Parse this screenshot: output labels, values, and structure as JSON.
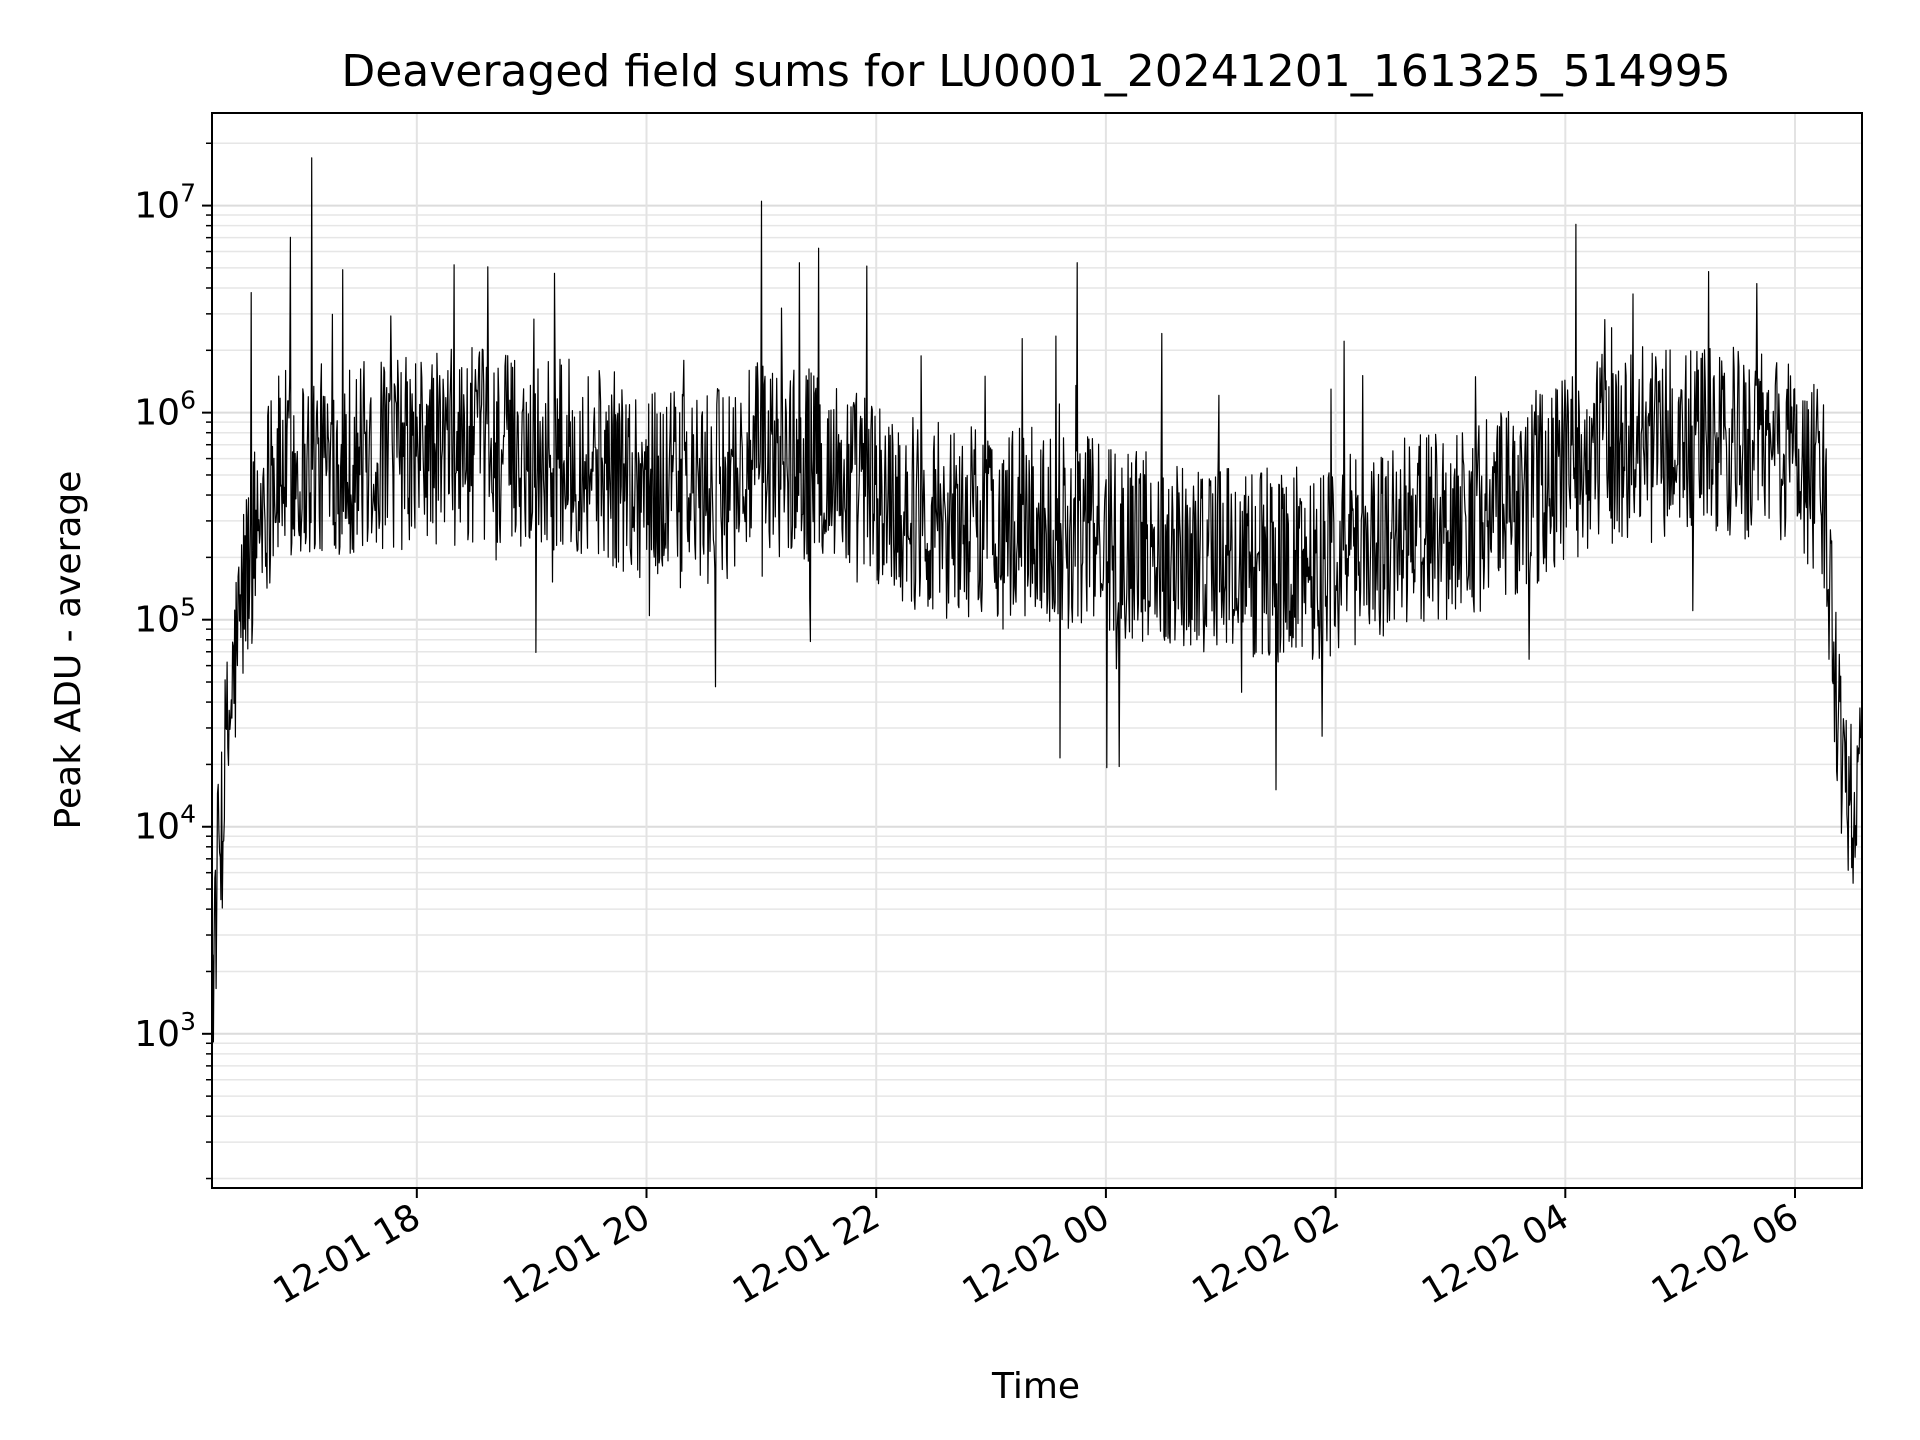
{
  "chart_data": {
    "type": "line",
    "title": "Deaveraged field sums for LU0001_20241201_161325_514995",
    "xlabel": "Time",
    "ylabel": "Peak ADU - average",
    "yscale": "log",
    "ylim": [
      180,
      28000000
    ],
    "xlim": [
      "2024-12-01 16:13",
      "2024-12-02 06:35"
    ],
    "grid": "major and minor, light gray",
    "line_color": "#000000",
    "x_ticks": [
      "12-01 18",
      "12-01 20",
      "12-01 22",
      "12-02 00",
      "12-02 02",
      "12-02 04",
      "12-02 06"
    ],
    "x_tick_values": [
      "2024-12-01 18:00",
      "2024-12-01 20:00",
      "2024-12-01 22:00",
      "2024-12-02 00:00",
      "2024-12-02 02:00",
      "2024-12-02 04:00",
      "2024-12-02 06:00"
    ],
    "y_ticks": [
      {
        "base": "10",
        "exp": "3",
        "value": 1000
      },
      {
        "base": "10",
        "exp": "4",
        "value": 10000
      },
      {
        "base": "10",
        "exp": "5",
        "value": 100000
      },
      {
        "base": "10",
        "exp": "6",
        "value": 1000000
      },
      {
        "base": "10",
        "exp": "7",
        "value": 10000000
      }
    ],
    "series": [
      {
        "x": [
          "2024-12-01 16:13",
          "2024-12-01 16:15",
          "2024-12-01 16:20",
          "2024-12-01 16:25",
          "2024-12-01 16:30",
          "2024-12-01 16:40",
          "2024-12-01 16:50",
          "2024-12-01 17:00",
          "2024-12-01 17:15",
          "2024-12-01 17:30",
          "2024-12-01 18:00",
          "2024-12-01 18:30",
          "2024-12-01 19:00",
          "2024-12-01 19:30",
          "2024-12-01 20:00",
          "2024-12-01 20:30",
          "2024-12-01 21:00",
          "2024-12-01 21:30",
          "2024-12-01 22:00",
          "2024-12-01 22:30",
          "2024-12-01 23:00",
          "2024-12-01 23:30",
          "2024-12-02 00:00",
          "2024-12-02 00:30",
          "2024-12-02 01:00",
          "2024-12-02 01:30",
          "2024-12-02 02:00",
          "2024-12-02 02:30",
          "2024-12-02 03:00",
          "2024-12-02 03:30",
          "2024-12-02 04:00",
          "2024-12-02 04:30",
          "2024-12-02 05:00",
          "2024-12-02 05:30",
          "2024-12-02 06:00",
          "2024-12-02 06:15",
          "2024-12-02 06:25",
          "2024-12-02 06:35"
        ],
        "y": [
          1500,
          4000,
          20000,
          60000,
          150000,
          400000,
          550000,
          550000,
          600000,
          600000,
          650000,
          700000,
          650000,
          600000,
          450000,
          400000,
          600000,
          550000,
          400000,
          300000,
          300000,
          280000,
          250000,
          220000,
          200000,
          180000,
          200000,
          250000,
          300000,
          350000,
          550000,
          700000,
          700000,
          700000,
          650000,
          400000,
          20000,
          12000
        ]
      }
    ],
    "notable_spikes": [
      {
        "x": "2024-12-01 17:05",
        "y": 17000000
      },
      {
        "x": "2024-12-01 21:00",
        "y": 10500000
      },
      {
        "x": "2024-12-01 21:20",
        "y": 5300000
      },
      {
        "x": "2024-12-01 21:55",
        "y": 5100000
      },
      {
        "x": "2024-12-01 23:45",
        "y": 5300000
      },
      {
        "x": "2024-12-02 05:15",
        "y": 4800000
      },
      {
        "x": "2024-12-02 05:40",
        "y": 4200000
      }
    ]
  }
}
